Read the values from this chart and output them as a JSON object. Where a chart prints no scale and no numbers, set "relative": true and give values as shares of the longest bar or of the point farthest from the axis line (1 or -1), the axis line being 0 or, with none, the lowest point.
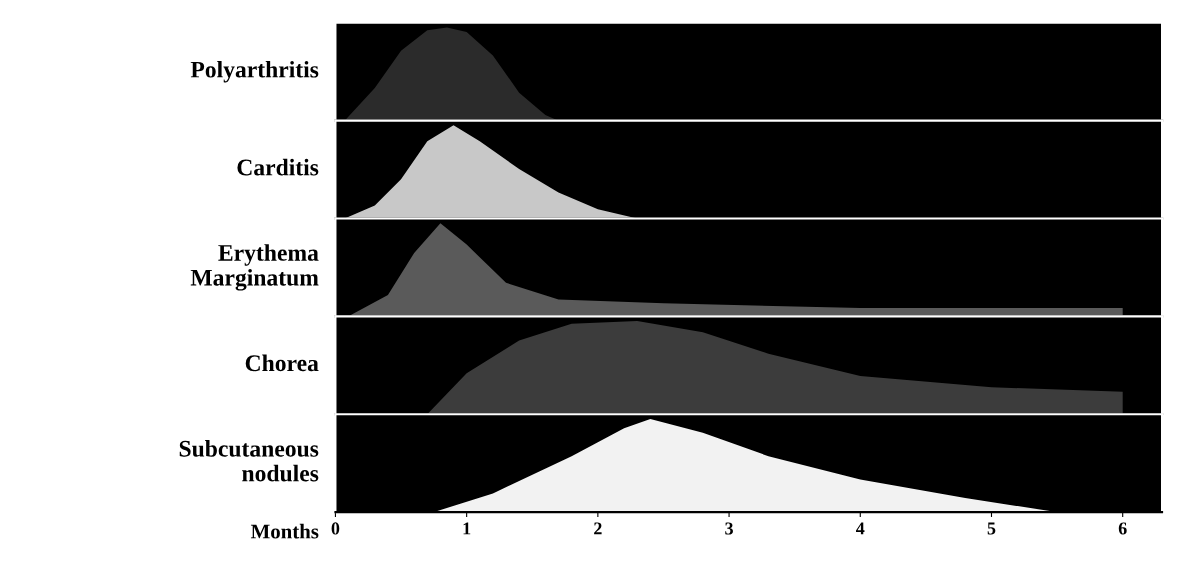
{
  "chart_data": [
    {
      "type": "area",
      "relative": true,
      "xlim": [
        0,
        6.3
      ],
      "tick_labels": false,
      "series": [
        {
          "name": "Polyarthritis",
          "color": "#2b2b2b",
          "x": [
            0.07,
            0.3,
            0.5,
            0.7,
            0.85,
            1.0,
            1.2,
            1.4,
            1.6,
            1.7
          ],
          "values": [
            0,
            0.35,
            0.75,
            0.97,
            1,
            0.95,
            0.7,
            0.3,
            0.06,
            0
          ]
        }
      ]
    },
    {
      "type": "area",
      "relative": true,
      "xlim": [
        0,
        6.3
      ],
      "tick_labels": false,
      "series": [
        {
          "name": "Carditis",
          "color": "#c8c8c8",
          "x": [
            0.07,
            0.3,
            0.5,
            0.7,
            0.9,
            1.1,
            1.4,
            1.7,
            2.0,
            2.3
          ],
          "values": [
            0,
            0.14,
            0.42,
            0.83,
            1,
            0.83,
            0.53,
            0.28,
            0.1,
            0
          ]
        }
      ]
    },
    {
      "type": "area",
      "relative": true,
      "xlim": [
        0,
        6.3
      ],
      "tick_labels": false,
      "series": [
        {
          "name": "Erythema\nMarginatum",
          "color": "#5a5a5a",
          "x": [
            0.1,
            0.4,
            0.6,
            0.8,
            1.0,
            1.3,
            1.7,
            2.5,
            4,
            6
          ],
          "values": [
            0,
            0.23,
            0.68,
            1,
            0.77,
            0.36,
            0.18,
            0.14,
            0.09,
            0.09
          ]
        }
      ]
    },
    {
      "type": "area",
      "relative": true,
      "xlim": [
        0,
        6.3
      ],
      "tick_labels": false,
      "series": [
        {
          "name": "Chorea",
          "color": "#3c3c3c",
          "x": [
            0.7,
            1.0,
            1.4,
            1.8,
            2.3,
            2.8,
            3.3,
            4,
            5,
            6
          ],
          "values": [
            0,
            0.44,
            0.79,
            0.97,
            1,
            0.88,
            0.65,
            0.41,
            0.29,
            0.24
          ]
        }
      ]
    },
    {
      "type": "area",
      "relative": true,
      "xlim": [
        0,
        6.3
      ],
      "xticks": [
        0,
        1,
        2,
        3,
        4,
        5,
        6
      ],
      "xlabel": "Months",
      "tick_labels": "x",
      "series": [
        {
          "name": "Subcutaneous\nnodules",
          "color": "#f2f2f2",
          "x": [
            0.75,
            1.2,
            1.8,
            2.2,
            2.4,
            2.8,
            3.3,
            4,
            4.8,
            5.5
          ],
          "values": [
            0,
            0.2,
            0.6,
            0.9,
            1,
            0.85,
            0.6,
            0.35,
            0.15,
            0
          ]
        }
      ]
    }
  ]
}
